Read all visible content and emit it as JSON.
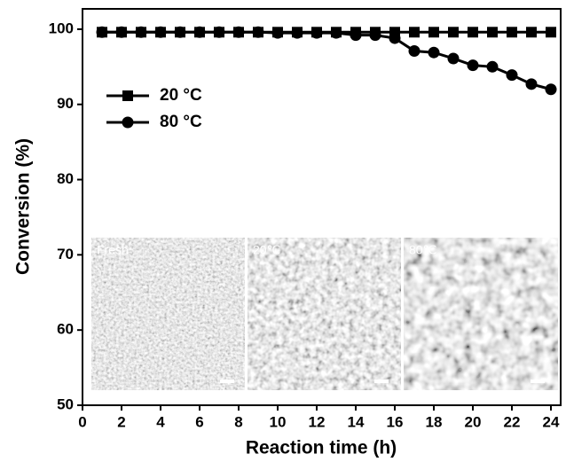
{
  "chart_data": {
    "type": "line",
    "x_label": "Reaction time (h)",
    "y_label": "Conversion (%)",
    "x": [
      1,
      2,
      3,
      4,
      5,
      6,
      7,
      8,
      9,
      10,
      11,
      12,
      13,
      14,
      15,
      16,
      17,
      18,
      19,
      20,
      21,
      22,
      23,
      24
    ],
    "series": [
      {
        "name": "20 °C",
        "color": "#000000",
        "marker": "square",
        "values": [
          99.6,
          99.6,
          99.6,
          99.6,
          99.6,
          99.6,
          99.6,
          99.6,
          99.6,
          99.6,
          99.6,
          99.6,
          99.6,
          99.6,
          99.6,
          99.6,
          99.6,
          99.6,
          99.6,
          99.6,
          99.6,
          99.6,
          99.6,
          99.6
        ]
      },
      {
        "name": "80 °C",
        "color": "#000000",
        "marker": "circle",
        "values": [
          99.6,
          99.6,
          99.6,
          99.6,
          99.6,
          99.6,
          99.6,
          99.6,
          99.6,
          99.5,
          99.5,
          99.5,
          99.5,
          99.2,
          99.2,
          98.8,
          97.1,
          96.9,
          96.1,
          95.2,
          95.0,
          93.9,
          92.7,
          92.0
        ]
      }
    ],
    "xlim": [
      0,
      24.5
    ],
    "xticks": [
      0,
      2,
      4,
      6,
      8,
      10,
      12,
      14,
      16,
      18,
      20,
      22,
      24
    ],
    "ylim": [
      50,
      102.7
    ],
    "yticks": [
      50,
      60,
      70,
      80,
      90,
      100
    ],
    "legend": "upper left",
    "insets": [
      "Fresh",
      "20℃",
      "80℃"
    ]
  }
}
